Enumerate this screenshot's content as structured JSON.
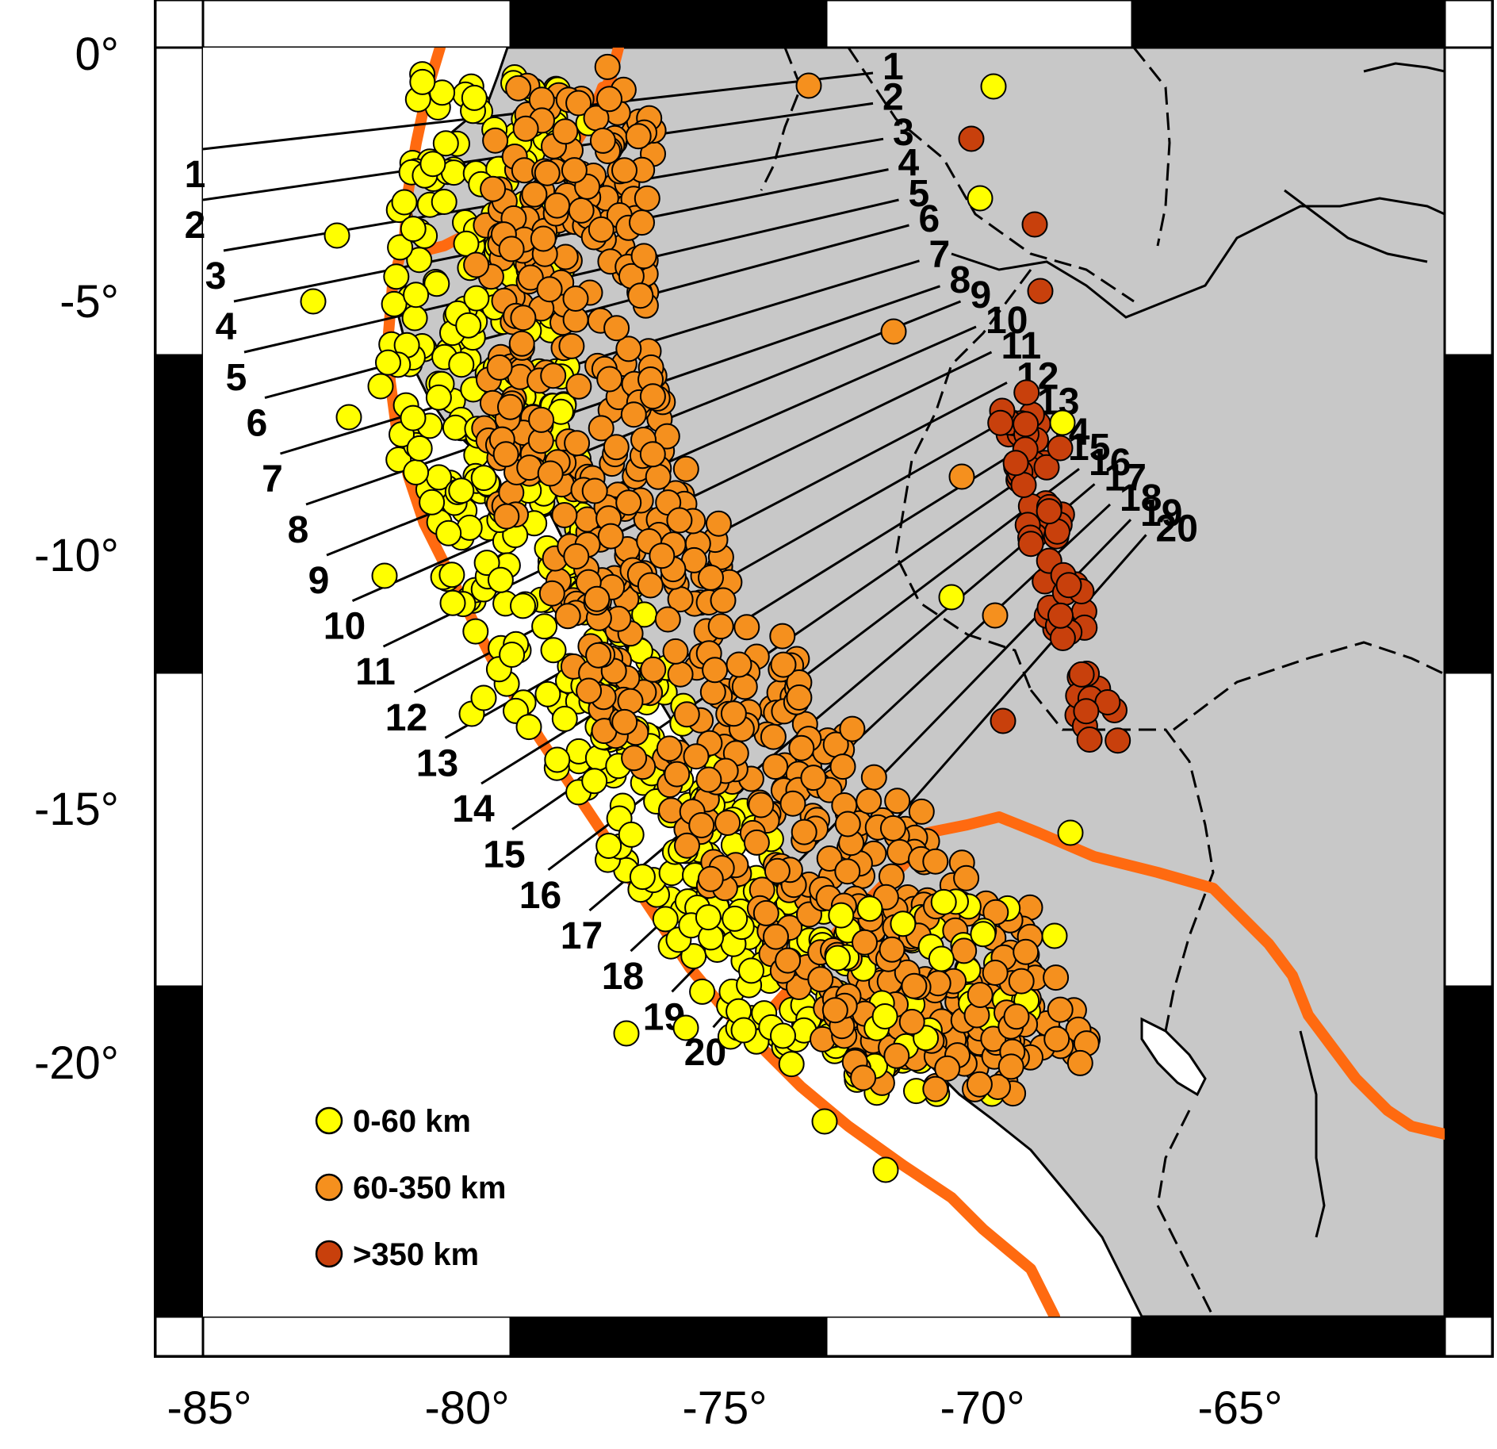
{
  "map": {
    "lon_range": [
      -86,
      -65
    ],
    "lat_range": [
      -20,
      0.5
    ],
    "lon_ticks": [
      {
        "value": -85,
        "label": "-85°"
      },
      {
        "value": -80,
        "label": "-80°"
      },
      {
        "value": -75,
        "label": "-75°"
      },
      {
        "value": -70,
        "label": "-70°"
      },
      {
        "value": -65,
        "label": "-65°"
      }
    ],
    "lat_ticks": [
      {
        "value": 0,
        "label": "0°"
      },
      {
        "value": -5,
        "label": "-5°"
      },
      {
        "value": -10,
        "label": "-10°"
      },
      {
        "value": -15,
        "label": "-15°"
      },
      {
        "value": -20,
        "label": "-20°"
      }
    ],
    "colors": {
      "land": "#c8c8c8",
      "ocean": "#ffffff",
      "plate_boundary": "#ff6a10",
      "shallow": "#ffff00",
      "intermediate": "#f5901e",
      "deep": "#c8400c"
    },
    "legend": [
      {
        "label": "0-60 km",
        "color": "#ffff00"
      },
      {
        "label": "60-350 km",
        "color": "#f5901e"
      },
      {
        "label": ">350 km",
        "color": "#c8400c"
      }
    ],
    "profiles": [
      {
        "id": "1",
        "left_label": "1",
        "right_label": "1",
        "start": [
          -85.0,
          -2.0
        ],
        "end": [
          -72.0,
          -0.5
        ]
      },
      {
        "id": "2",
        "left_label": "2",
        "right_label": "2",
        "start": [
          -85.0,
          -3.0
        ],
        "end": [
          -72.0,
          -1.1
        ]
      },
      {
        "id": "3",
        "left_label": "3",
        "right_label": "3",
        "start": [
          -84.6,
          -4.0
        ],
        "end": [
          -71.8,
          -1.8
        ]
      },
      {
        "id": "4",
        "left_label": "4",
        "right_label": "4",
        "start": [
          -84.4,
          -5.0
        ],
        "end": [
          -71.7,
          -2.4
        ]
      },
      {
        "id": "5",
        "left_label": "5",
        "right_label": "5",
        "start": [
          -84.2,
          -6.0
        ],
        "end": [
          -71.5,
          -3.0
        ]
      },
      {
        "id": "6",
        "left_label": "6",
        "right_label": "6",
        "start": [
          -83.8,
          -6.9
        ],
        "end": [
          -71.3,
          -3.5
        ]
      },
      {
        "id": "7",
        "left_label": "7",
        "right_label": "7",
        "start": [
          -83.5,
          -8.0
        ],
        "end": [
          -71.1,
          -4.2
        ]
      },
      {
        "id": "8",
        "left_label": "8",
        "right_label": "8",
        "start": [
          -83.0,
          -9.0
        ],
        "end": [
          -70.7,
          -4.7
        ]
      },
      {
        "id": "9",
        "left_label": "9",
        "right_label": "9",
        "start": [
          -82.6,
          -10.0
        ],
        "end": [
          -70.3,
          -5.0
        ]
      },
      {
        "id": "10",
        "left_label": "10",
        "right_label": "10",
        "start": [
          -82.1,
          -10.9
        ],
        "end": [
          -70.0,
          -5.5
        ]
      },
      {
        "id": "11",
        "left_label": "11",
        "right_label": "11",
        "start": [
          -81.5,
          -11.8
        ],
        "end": [
          -69.7,
          -6.0
        ]
      },
      {
        "id": "12",
        "left_label": "12",
        "right_label": "12",
        "start": [
          -80.9,
          -12.7
        ],
        "end": [
          -69.4,
          -6.6
        ]
      },
      {
        "id": "13",
        "left_label": "13",
        "right_label": "13",
        "start": [
          -80.3,
          -13.6
        ],
        "end": [
          -69.0,
          -7.1
        ]
      },
      {
        "id": "14",
        "left_label": "14",
        "right_label": "14",
        "start": [
          -79.6,
          -14.5
        ],
        "end": [
          -68.8,
          -7.7
        ]
      },
      {
        "id": "15",
        "left_label": "15",
        "right_label": "15",
        "start": [
          -79.0,
          -15.4
        ],
        "end": [
          -68.4,
          -8.0
        ]
      },
      {
        "id": "16",
        "left_label": "16",
        "right_label": "16",
        "start": [
          -78.3,
          -16.2
        ],
        "end": [
          -68.0,
          -8.3
        ]
      },
      {
        "id": "17",
        "left_label": "17",
        "right_label": "17",
        "start": [
          -77.5,
          -17.0
        ],
        "end": [
          -67.7,
          -8.6
        ]
      },
      {
        "id": "18",
        "left_label": "18",
        "right_label": "18",
        "start": [
          -76.7,
          -17.8
        ],
        "end": [
          -67.4,
          -9.0
        ]
      },
      {
        "id": "19",
        "left_label": "19",
        "right_label": "19",
        "start": [
          -75.9,
          -18.6
        ],
        "end": [
          -67.0,
          -9.3
        ]
      },
      {
        "id": "20",
        "left_label": "20",
        "right_label": "20",
        "start": [
          -75.1,
          -19.3
        ],
        "end": [
          -66.7,
          -9.6
        ]
      }
    ]
  }
}
